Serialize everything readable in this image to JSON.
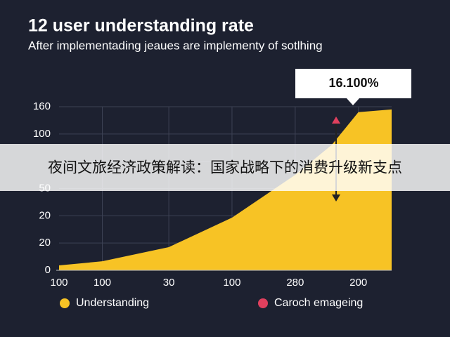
{
  "chart_data": {
    "type": "area",
    "title": "12 user understanding rate",
    "subtitle": "After implementading jeaues are implementy of sotlhing",
    "banner": "夜间文旅经济政策解读：国家战略下的消费升级新支点",
    "annotation": "16.100%",
    "xlim": [
      0,
      100
    ],
    "xticks": [
      {
        "value": 0,
        "label": "100"
      },
      {
        "value": 13,
        "label": "100"
      },
      {
        "value": 33,
        "label": "30"
      },
      {
        "value": 52,
        "label": "100"
      },
      {
        "value": 71,
        "label": "280"
      },
      {
        "value": 90,
        "label": "200"
      }
    ],
    "ylim": [
      0,
      6
    ],
    "yticks": [
      {
        "value": 0,
        "label": "0"
      },
      {
        "value": 1,
        "label": "20"
      },
      {
        "value": 2,
        "label": "20"
      },
      {
        "value": 3,
        "label": "50"
      },
      {
        "value": 4,
        "label": null
      },
      {
        "value": 5,
        "label": "100"
      },
      {
        "value": 6,
        "label": "160"
      }
    ],
    "grid": true,
    "series": [
      {
        "name": "Understanding",
        "color": "#f7c325",
        "x": [
          0,
          13,
          33,
          52,
          71,
          82,
          90,
          100
        ],
        "values": [
          0.18,
          0.33,
          0.85,
          1.93,
          3.5,
          4.6,
          5.8,
          5.9
        ]
      }
    ],
    "legend": [
      {
        "name": "Understanding",
        "color": "#f7c325"
      },
      {
        "name": "Caroch emageing",
        "color": "#e0405e"
      }
    ]
  }
}
